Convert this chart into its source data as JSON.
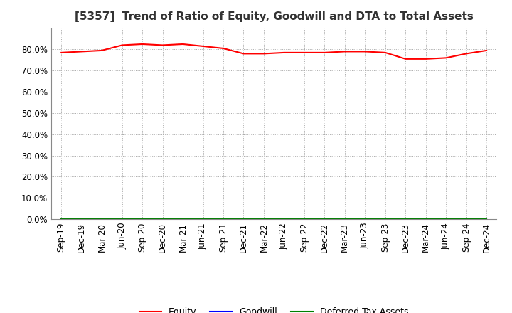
{
  "title": "[5357]  Trend of Ratio of Equity, Goodwill and DTA to Total Assets",
  "x_labels": [
    "Sep-19",
    "Dec-19",
    "Mar-20",
    "Jun-20",
    "Sep-20",
    "Dec-20",
    "Mar-21",
    "Jun-21",
    "Sep-21",
    "Dec-21",
    "Mar-22",
    "Jun-22",
    "Sep-22",
    "Dec-22",
    "Mar-23",
    "Jun-23",
    "Sep-23",
    "Dec-23",
    "Mar-24",
    "Jun-24",
    "Sep-24",
    "Dec-24"
  ],
  "equity": [
    78.5,
    79.0,
    79.5,
    82.0,
    82.5,
    82.0,
    82.5,
    81.5,
    80.5,
    78.0,
    78.0,
    78.5,
    78.5,
    78.5,
    79.0,
    79.0,
    78.5,
    75.5,
    75.5,
    76.0,
    78.0,
    79.5
  ],
  "goodwill": [
    0.0,
    0.0,
    0.0,
    0.0,
    0.0,
    0.0,
    0.0,
    0.0,
    0.0,
    0.0,
    0.0,
    0.0,
    0.0,
    0.0,
    0.0,
    0.0,
    0.0,
    0.0,
    0.0,
    0.0,
    0.0,
    0.0
  ],
  "dta": [
    0.0,
    0.0,
    0.0,
    0.0,
    0.0,
    0.0,
    0.0,
    0.0,
    0.0,
    0.0,
    0.0,
    0.0,
    0.0,
    0.0,
    0.0,
    0.0,
    0.0,
    0.0,
    0.0,
    0.0,
    0.0,
    0.0
  ],
  "equity_color": "#FF0000",
  "goodwill_color": "#0000FF",
  "dta_color": "#008000",
  "ylim": [
    0,
    90
  ],
  "yticks": [
    0,
    10,
    20,
    30,
    40,
    50,
    60,
    70,
    80
  ],
  "background_color": "#FFFFFF",
  "plot_bg_color": "#FFFFFF",
  "grid_color": "#AAAAAA",
  "title_fontsize": 11,
  "tick_fontsize": 8.5,
  "legend_fontsize": 9
}
